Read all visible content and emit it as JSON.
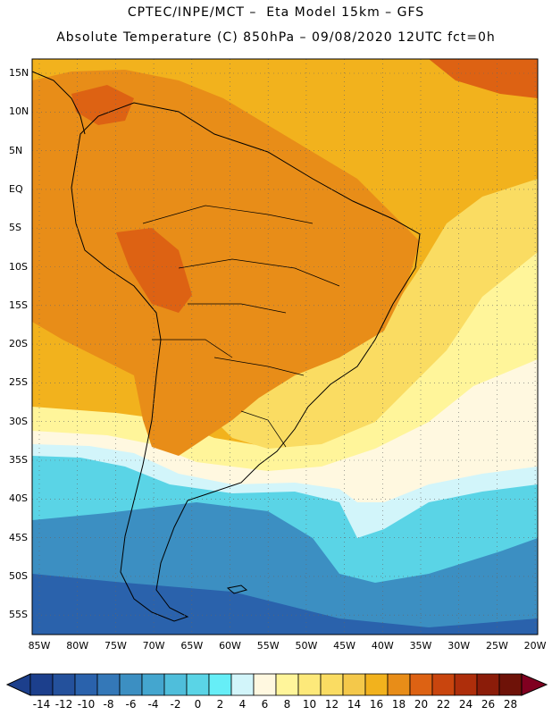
{
  "title": {
    "line1": "CPTEC/INPE/MCT –  Eta Model 15km – GFS",
    "line2": "Absolute Temperature (C) 850hPa – 09/08/2020 12UTC fct=0h"
  },
  "axes": {
    "lat_labels": [
      "15N",
      "10N",
      "5N",
      "EQ",
      "5S",
      "10S",
      "15S",
      "20S",
      "25S",
      "30S",
      "35S",
      "40S",
      "45S",
      "50S",
      "55S"
    ],
    "lon_labels": [
      "85W",
      "80W",
      "75W",
      "70W",
      "65W",
      "60W",
      "55W",
      "50W",
      "45W",
      "40W",
      "35W",
      "30W",
      "25W",
      "20W"
    ]
  },
  "colorbar": {
    "labels": [
      "-14",
      "-12",
      "-10",
      "-8",
      "-6",
      "-4",
      "-2",
      "0",
      "2",
      "4",
      "6",
      "8",
      "10",
      "12",
      "14",
      "16",
      "18",
      "20",
      "22",
      "24",
      "26",
      "28"
    ],
    "colors": [
      "#1c3f8c",
      "#24519c",
      "#2a62ac",
      "#3478b8",
      "#3c8fc2",
      "#44a6cf",
      "#4fbedb",
      "#5ad4e6",
      "#66eef7",
      "#d2f5fa",
      "#fff8e0",
      "#fff59a",
      "#fde97a",
      "#fadc62",
      "#f4c84a",
      "#f2b21d",
      "#e88d18",
      "#dd6213",
      "#c9450e",
      "#ae2e0b",
      "#8b1c09",
      "#6e1208"
    ]
  },
  "regions": [
    {
      "name": "caribbean",
      "color": "#f2b21d"
    },
    {
      "name": "continent",
      "color": "#e88d18"
    },
    {
      "name": "hot-core",
      "color": "#dd6213"
    },
    {
      "name": "atlantic-warm",
      "color": "#fadc62"
    },
    {
      "name": "subtropical-pale",
      "color": "#fff59a"
    },
    {
      "name": "frontal-band",
      "color": "#fff8e0"
    },
    {
      "name": "cold-cyan",
      "color": "#5ad4e6"
    },
    {
      "name": "cold-blue",
      "color": "#3c8fc2"
    },
    {
      "name": "deep-cold",
      "color": "#2a62ac"
    },
    {
      "name": "coastline",
      "color": "#000000"
    }
  ]
}
